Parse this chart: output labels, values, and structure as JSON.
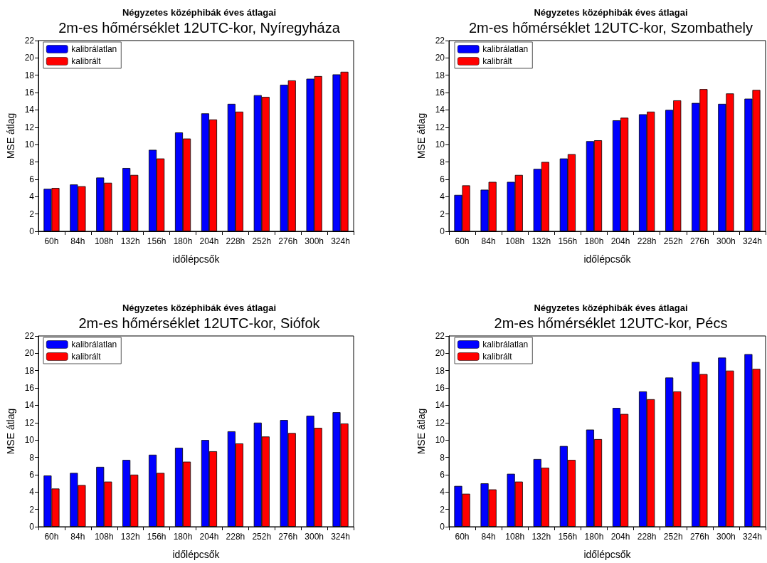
{
  "chart_data": [
    {
      "type": "bar",
      "title": "Négyzetes középhibák éves átlagai",
      "subtitle": "2m-es hőmérséklet 12UTC-kor, Nyíregyháza",
      "xlabel": "időlépcsők",
      "ylabel": "MSE átlag",
      "categories": [
        "60h",
        "84h",
        "108h",
        "132h",
        "156h",
        "180h",
        "204h",
        "228h",
        "252h",
        "276h",
        "300h",
        "324h"
      ],
      "series": [
        {
          "name": "kalibrálatlan",
          "color": "#0000ff",
          "values": [
            4.9,
            5.4,
            6.2,
            7.3,
            9.4,
            11.4,
            13.6,
            14.7,
            15.7,
            16.9,
            17.6,
            18.1
          ]
        },
        {
          "name": "kalibrált",
          "color": "#ff0000",
          "values": [
            5.0,
            5.2,
            5.6,
            6.5,
            8.4,
            10.7,
            12.9,
            13.8,
            15.5,
            17.4,
            17.9,
            18.4
          ]
        }
      ],
      "ylim": [
        0,
        22
      ],
      "yticks": [
        0,
        2,
        4,
        6,
        8,
        10,
        12,
        14,
        16,
        18,
        20,
        22
      ],
      "legend": "top left"
    },
    {
      "type": "bar",
      "title": "Négyzetes középhibák éves átlagai",
      "subtitle": "2m-es hőmérséklet 12UTC-kor, Szombathely",
      "xlabel": "időlépcsők",
      "ylabel": "MSE átlag",
      "categories": [
        "60h",
        "84h",
        "108h",
        "132h",
        "156h",
        "180h",
        "204h",
        "228h",
        "252h",
        "276h",
        "300h",
        "324h"
      ],
      "series": [
        {
          "name": "kalibrálatlan",
          "color": "#0000ff",
          "values": [
            4.2,
            4.8,
            5.7,
            7.2,
            8.4,
            10.4,
            12.8,
            13.5,
            14.0,
            14.8,
            14.7,
            15.3
          ]
        },
        {
          "name": "kalibrált",
          "color": "#ff0000",
          "values": [
            5.3,
            5.7,
            6.5,
            8.0,
            8.9,
            10.5,
            13.1,
            13.8,
            15.1,
            16.4,
            15.9,
            16.3
          ]
        }
      ],
      "ylim": [
        0,
        22
      ],
      "yticks": [
        0,
        2,
        4,
        6,
        8,
        10,
        12,
        14,
        16,
        18,
        20,
        22
      ],
      "legend": "top left"
    },
    {
      "type": "bar",
      "title": "Négyzetes középhibák éves átlagai",
      "subtitle": "2m-es hőmérséklet 12UTC-kor, Siófok",
      "xlabel": "időlépcsők",
      "ylabel": "MSE átlag",
      "categories": [
        "60h",
        "84h",
        "108h",
        "132h",
        "156h",
        "180h",
        "204h",
        "228h",
        "252h",
        "276h",
        "300h",
        "324h"
      ],
      "series": [
        {
          "name": "kalibrálatlan",
          "color": "#0000ff",
          "values": [
            5.9,
            6.2,
            6.9,
            7.7,
            8.3,
            9.1,
            10.0,
            11.0,
            12.0,
            12.3,
            12.8,
            13.2
          ]
        },
        {
          "name": "kalibrált",
          "color": "#ff0000",
          "values": [
            4.4,
            4.8,
            5.2,
            6.0,
            6.2,
            7.5,
            8.7,
            9.6,
            10.4,
            10.8,
            11.4,
            11.9
          ]
        }
      ],
      "ylim": [
        0,
        22
      ],
      "yticks": [
        0,
        2,
        4,
        6,
        8,
        10,
        12,
        14,
        16,
        18,
        20,
        22
      ],
      "legend": "top left"
    },
    {
      "type": "bar",
      "title": "Négyzetes középhibák éves átlagai",
      "subtitle": "2m-es hőmérséklet 12UTC-kor, Pécs",
      "xlabel": "időlépcsők",
      "ylabel": "MSE átlag",
      "categories": [
        "60h",
        "84h",
        "108h",
        "132h",
        "156h",
        "180h",
        "204h",
        "228h",
        "252h",
        "276h",
        "300h",
        "324h"
      ],
      "series": [
        {
          "name": "kalibrálatlan",
          "color": "#0000ff",
          "values": [
            4.7,
            5.0,
            6.1,
            7.8,
            9.3,
            11.2,
            13.7,
            15.6,
            17.2,
            19.0,
            19.5,
            19.9
          ]
        },
        {
          "name": "kalibrált",
          "color": "#ff0000",
          "values": [
            3.8,
            4.3,
            5.2,
            6.8,
            7.7,
            10.1,
            13.0,
            14.7,
            15.6,
            17.6,
            18.0,
            18.2
          ]
        }
      ],
      "ylim": [
        0,
        22
      ],
      "yticks": [
        0,
        2,
        4,
        6,
        8,
        10,
        12,
        14,
        16,
        18,
        20,
        22
      ],
      "legend": "top left"
    }
  ]
}
